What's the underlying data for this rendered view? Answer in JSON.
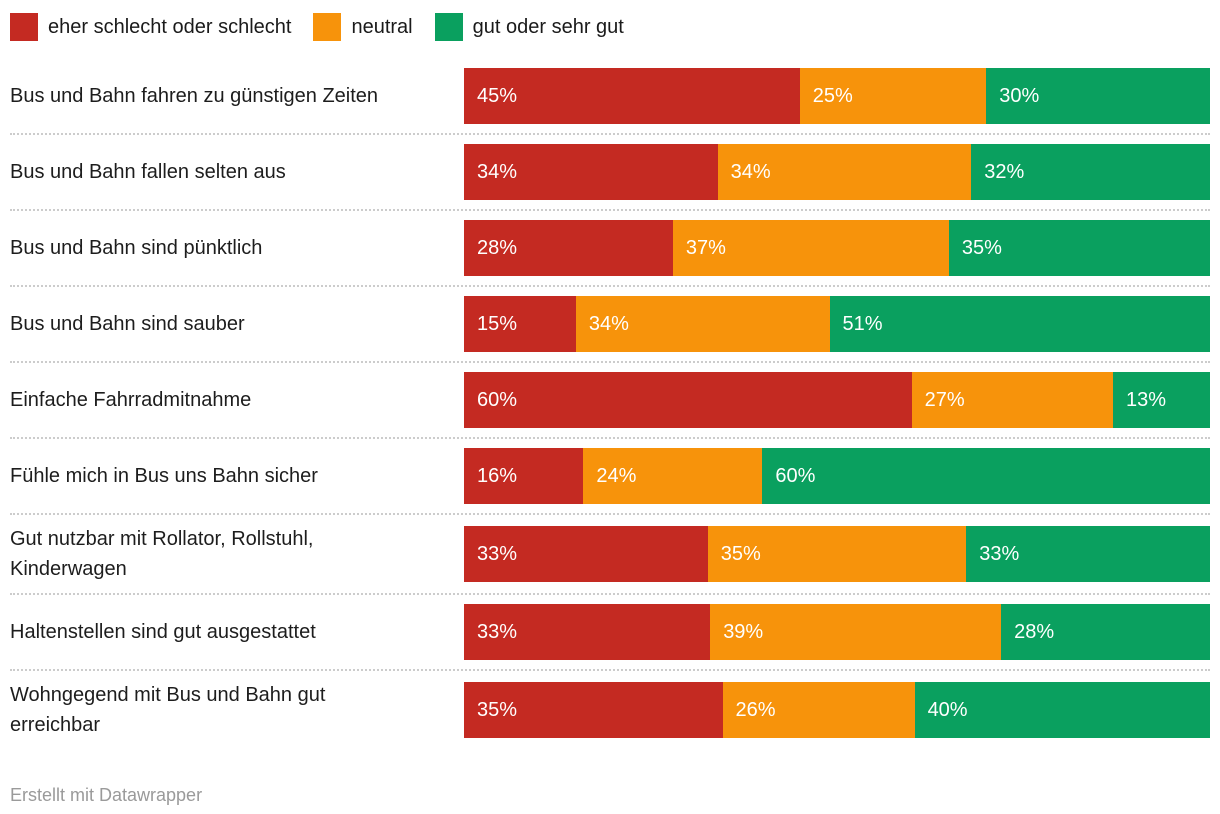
{
  "chart_data": {
    "type": "bar",
    "subtype": "horizontal-stacked-100",
    "unit": "%",
    "legend_position": "top",
    "grid": false,
    "series": [
      {
        "name": "eher schlecht oder schlecht",
        "color": "#c42a22",
        "values": [
          45,
          34,
          28,
          15,
          60,
          16,
          33,
          33,
          35
        ]
      },
      {
        "name": "neutral",
        "color": "#f7930b",
        "values": [
          25,
          34,
          37,
          34,
          27,
          24,
          35,
          39,
          26
        ]
      },
      {
        "name": "gut oder sehr gut",
        "color": "#0aa05f",
        "values": [
          30,
          32,
          35,
          51,
          13,
          60,
          33,
          28,
          40
        ]
      }
    ],
    "categories": [
      "Bus und Bahn fahren zu günstigen Zeiten",
      "Bus und Bahn fallen selten aus",
      "Bus und Bahn sind pünktlich",
      "Bus und Bahn sind sauber",
      "Einfache Fahrradmitnahme",
      "Fühle mich in Bus uns Bahn sicher",
      "Gut nutzbar mit Rollator, Rollstuhl,\nKinderwagen",
      "Haltenstellen sind gut ausgestattet",
      "Wohngegend mit Bus und Bahn gut\nerreichbar"
    ],
    "value_label_format": "{v}%",
    "separator_color": "#cccccc"
  },
  "footer": {
    "credit": "Erstellt mit Datawrapper"
  }
}
